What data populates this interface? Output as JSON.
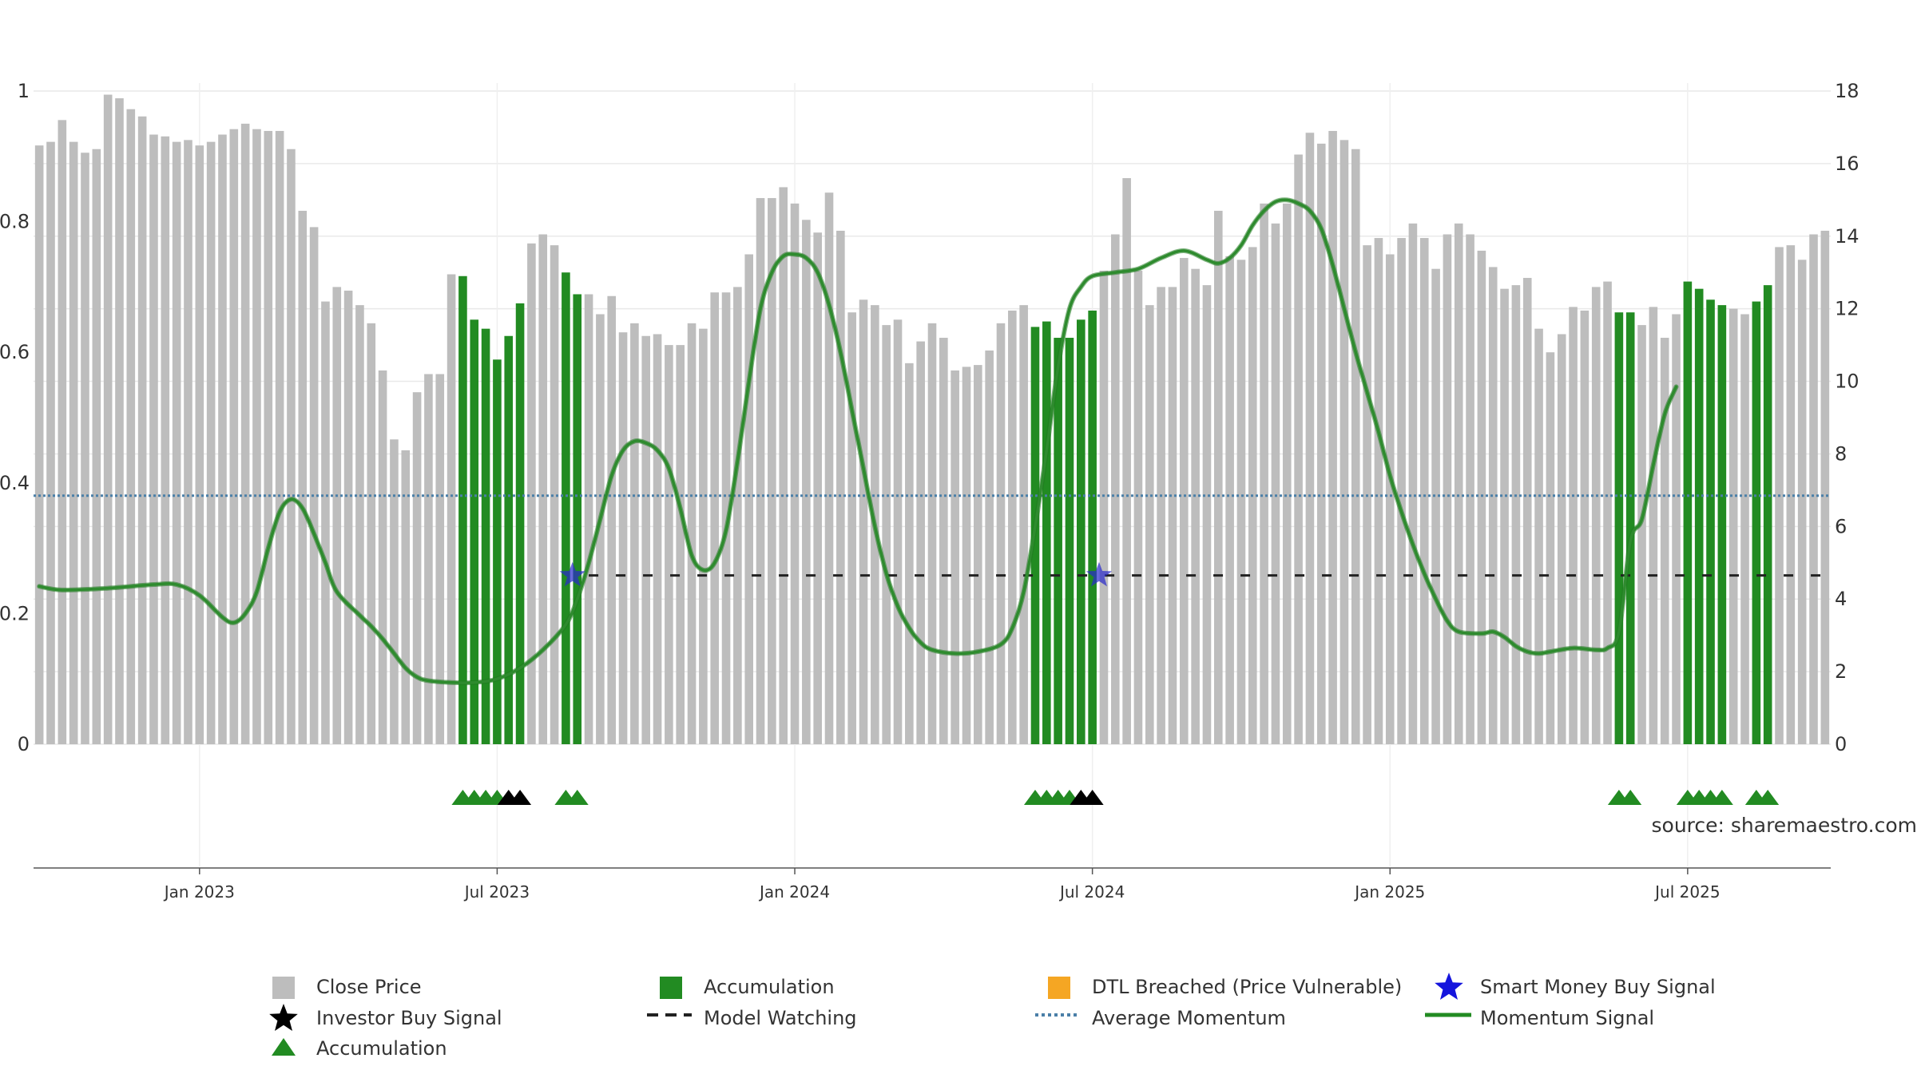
{
  "chart_data": {
    "type": "bar",
    "title": "",
    "xlabel": "",
    "ylabel": "",
    "source_text": "source: sharemaestro.com",
    "left_axis": {
      "ticks": [
        "0",
        "0.2",
        "0.4",
        "0.6",
        "0.8",
        "1"
      ],
      "range": [
        0,
        1
      ]
    },
    "right_axis": {
      "ticks": [
        "0",
        "2",
        "4",
        "6",
        "8",
        "10",
        "12",
        "14",
        "16",
        "18"
      ],
      "range": [
        0,
        18
      ]
    },
    "x_ticks": [
      "Jan 2023",
      "Jul 2023",
      "Jan 2024",
      "Jul 2024",
      "Jan 2025",
      "Jul 2025"
    ],
    "x_tick_bar_index": [
      14.5,
      40.5,
      66.5,
      92.5,
      118.5,
      144.5
    ],
    "grid": true,
    "colors": {
      "close_price": "#bdbdbd",
      "accumulation": "#228b22",
      "dtl_breached": "#f5a623",
      "momentum": "#2e8b2e",
      "average_momentum": "#4a7fa8",
      "model_watching": "#222222",
      "smart_money": "#2a2acc",
      "investor_buy": "#000000"
    },
    "close_prices": [
      16.5,
      16.6,
      17.2,
      16.6,
      16.3,
      16.4,
      17.9,
      17.8,
      17.5,
      17.3,
      16.8,
      16.75,
      16.6,
      16.65,
      16.5,
      16.6,
      16.8,
      16.95,
      17.1,
      16.95,
      16.9,
      16.9,
      16.4,
      14.7,
      14.25,
      12.2,
      12.6,
      12.5,
      12.1,
      11.6,
      10.3,
      8.4,
      8.1,
      9.7,
      10.2,
      10.2,
      12.95,
      12.9,
      11.7,
      11.45,
      10.6,
      11.25,
      12.15,
      13.8,
      14.05,
      13.75,
      13.0,
      12.4,
      12.4,
      11.85,
      12.35,
      11.35,
      11.6,
      11.25,
      11.3,
      11.0,
      11.0,
      11.6,
      11.45,
      12.45,
      12.45,
      12.6,
      13.5,
      15.05,
      15.05,
      15.35,
      14.9,
      14.45,
      14.1,
      15.2,
      14.15,
      11.9,
      12.25,
      12.1,
      11.55,
      11.7,
      10.5,
      11.1,
      11.6,
      11.2,
      10.3,
      10.4,
      10.45,
      10.85,
      11.6,
      11.95,
      12.1,
      11.5,
      11.65,
      11.2,
      11.2,
      11.7,
      11.95,
      13.05,
      14.05,
      15.6,
      13.05,
      12.1,
      12.6,
      12.6,
      13.4,
      13.1,
      12.65,
      14.7,
      13.45,
      13.35,
      13.7,
      14.9,
      14.35,
      14.9,
      16.25,
      16.85,
      16.55,
      16.9,
      16.65,
      16.4,
      13.75,
      13.95,
      13.5,
      13.95,
      14.35,
      13.95,
      13.1,
      14.05,
      14.35,
      14.05,
      13.6,
      13.15,
      12.55,
      12.65,
      12.85,
      11.45,
      10.8,
      11.3,
      12.05,
      11.95,
      12.6,
      12.75,
      11.9,
      11.9,
      11.55,
      12.05,
      11.2,
      11.85,
      12.75,
      12.55,
      12.25,
      12.1,
      12.0,
      11.85,
      12.2,
      12.65,
      13.7,
      13.75,
      13.35,
      14.05,
      14.15
    ],
    "accumulation_bars": [
      37,
      38,
      39,
      40,
      41,
      42,
      46,
      47,
      87,
      88,
      89,
      90,
      91,
      92,
      138,
      139,
      144,
      145,
      146,
      147,
      150,
      151
    ],
    "accumulation_triangle_bars": [
      37,
      38,
      39,
      40,
      46,
      47,
      87,
      88,
      89,
      90,
      138,
      139,
      144,
      145,
      146,
      147,
      150,
      151
    ],
    "investor_buy_signal_bars": [
      41,
      42,
      91,
      92
    ],
    "smart_money_buy_signal_bars": [
      47,
      93
    ],
    "model_watching": {
      "value": 4.65,
      "start_bar": 48,
      "end_bar": 156
    },
    "average_momentum": 6.85,
    "momentum": [
      [
        0,
        4.35
      ],
      [
        2,
        4.25
      ],
      [
        6,
        4.3
      ],
      [
        10,
        4.4
      ],
      [
        12,
        4.4
      ],
      [
        14,
        4.1
      ],
      [
        16,
        3.5
      ],
      [
        17,
        3.35
      ],
      [
        18,
        3.6
      ],
      [
        19,
        4.2
      ],
      [
        20,
        5.4
      ],
      [
        21,
        6.4
      ],
      [
        22,
        6.75
      ],
      [
        23,
        6.5
      ],
      [
        24,
        5.8
      ],
      [
        25,
        5.0
      ],
      [
        26,
        4.2
      ],
      [
        28,
        3.55
      ],
      [
        29,
        3.25
      ],
      [
        30,
        2.9
      ],
      [
        31,
        2.5
      ],
      [
        32,
        2.1
      ],
      [
        33,
        1.85
      ],
      [
        34,
        1.75
      ],
      [
        36,
        1.7
      ],
      [
        38,
        1.7
      ],
      [
        40,
        1.8
      ],
      [
        42,
        2.1
      ],
      [
        44,
        2.6
      ],
      [
        46,
        3.3
      ],
      [
        47,
        4.0
      ],
      [
        48,
        5.0
      ],
      [
        49,
        6.2
      ],
      [
        50,
        7.4
      ],
      [
        51,
        8.1
      ],
      [
        52,
        8.35
      ],
      [
        53,
        8.3
      ],
      [
        54,
        8.1
      ],
      [
        55,
        7.6
      ],
      [
        56,
        6.5
      ],
      [
        57,
        5.2
      ],
      [
        58,
        4.8
      ],
      [
        59,
        5.0
      ],
      [
        60,
        5.9
      ],
      [
        61,
        7.8
      ],
      [
        62,
        10.0
      ],
      [
        63,
        12.0
      ],
      [
        64,
        13.0
      ],
      [
        65,
        13.45
      ],
      [
        66,
        13.5
      ],
      [
        67,
        13.4
      ],
      [
        68,
        13.0
      ],
      [
        69,
        12.1
      ],
      [
        70,
        10.8
      ],
      [
        71,
        9.2
      ],
      [
        72,
        7.6
      ],
      [
        73,
        6.0
      ],
      [
        74,
        4.7
      ],
      [
        75,
        3.8
      ],
      [
        76,
        3.2
      ],
      [
        77,
        2.8
      ],
      [
        78,
        2.6
      ],
      [
        80,
        2.5
      ],
      [
        82,
        2.55
      ],
      [
        84,
        2.75
      ],
      [
        85,
        3.2
      ],
      [
        86,
        4.2
      ],
      [
        87,
        6.0
      ],
      [
        88,
        8.1
      ],
      [
        89,
        10.4
      ],
      [
        90,
        12.0
      ],
      [
        91,
        12.6
      ],
      [
        92,
        12.9
      ],
      [
        94,
        13.0
      ],
      [
        96,
        13.1
      ],
      [
        98,
        13.4
      ],
      [
        100,
        13.6
      ],
      [
        102,
        13.35
      ],
      [
        103,
        13.25
      ],
      [
        104,
        13.4
      ],
      [
        105,
        13.75
      ],
      [
        106,
        14.3
      ],
      [
        107,
        14.7
      ],
      [
        108,
        14.95
      ],
      [
        109,
        15.0
      ],
      [
        110,
        14.9
      ],
      [
        111,
        14.7
      ],
      [
        112,
        14.2
      ],
      [
        113,
        13.2
      ],
      [
        114,
        12.0
      ],
      [
        115,
        10.8
      ],
      [
        116,
        9.7
      ],
      [
        117,
        8.6
      ],
      [
        118,
        7.4
      ],
      [
        119,
        6.4
      ],
      [
        120,
        5.5
      ],
      [
        121,
        4.7
      ],
      [
        122,
        4.0
      ],
      [
        123,
        3.4
      ],
      [
        124,
        3.1
      ],
      [
        126,
        3.05
      ],
      [
        127,
        3.1
      ],
      [
        128,
        2.95
      ],
      [
        129,
        2.7
      ],
      [
        130,
        2.55
      ],
      [
        131,
        2.5
      ],
      [
        132,
        2.55
      ],
      [
        134,
        2.65
      ],
      [
        136,
        2.6
      ],
      [
        137,
        2.65
      ],
      [
        138,
        3.1
      ],
      [
        139,
        5.6
      ],
      [
        140,
        6.2
      ],
      [
        141,
        7.7
      ],
      [
        142,
        9.1
      ],
      [
        143,
        9.85
      ]
    ]
  },
  "legend": [
    {
      "symbol": "square-gray",
      "label": "Close Price"
    },
    {
      "symbol": "square-green",
      "label": "Accumulation"
    },
    {
      "symbol": "square-orange",
      "label": "DTL Breached (Price Vulnerable)"
    },
    {
      "symbol": "star-blue",
      "label": "Smart Money Buy Signal"
    },
    {
      "symbol": "star-black",
      "label": "Investor Buy Signal"
    },
    {
      "symbol": "dash-black",
      "label": "Model Watching"
    },
    {
      "symbol": "dot-blue",
      "label": "Average Momentum"
    },
    {
      "symbol": "line-green",
      "label": "Momentum Signal"
    },
    {
      "symbol": "triangle-green",
      "label": "Accumulation"
    }
  ]
}
